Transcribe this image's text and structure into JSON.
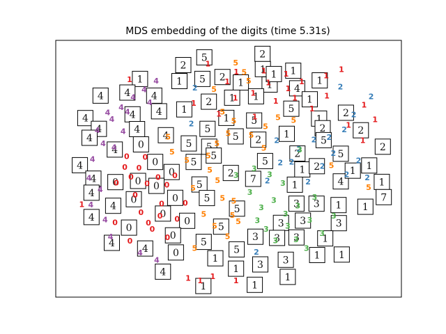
{
  "chart_data": {
    "type": "scatter",
    "title": "MDS embedding of the digits (time 5.31s)",
    "xlabel": "",
    "ylabel": "",
    "xlim": [
      0,
      100
    ],
    "ylim": [
      0,
      100
    ],
    "grid": false,
    "axes_ticks": false,
    "colors": {
      "0": "#e41a1c",
      "1": "#e41a1c",
      "2": "#377eb8",
      "3": "#4daf4a",
      "4": "#984ea3",
      "5": "#ff7f00"
    },
    "points": [
      {
        "label": "1",
        "x": 52.1,
        "y": 80.2
      },
      {
        "label": "1",
        "x": 60.9,
        "y": 91.8
      },
      {
        "label": "1",
        "x": 67.8,
        "y": 90.5
      },
      {
        "label": "1",
        "x": 72.6,
        "y": 87.3
      },
      {
        "label": "1",
        "x": 80.2,
        "y": 89.7
      },
      {
        "label": "1",
        "x": 84.9,
        "y": 92.4
      },
      {
        "label": "1",
        "x": 62.3,
        "y": 86.8
      },
      {
        "label": "1",
        "x": 70.5,
        "y": 80.3
      },
      {
        "label": "1",
        "x": 75.8,
        "y": 75.7
      },
      {
        "label": "1",
        "x": 80.4,
        "y": 81.1
      },
      {
        "label": "1",
        "x": 49.6,
        "y": 87.3
      },
      {
        "label": "1",
        "x": 52.4,
        "y": 91.4
      },
      {
        "label": "1",
        "x": 57.6,
        "y": 82.4
      },
      {
        "label": "1",
        "x": 64.6,
        "y": 78.9
      },
      {
        "label": "1",
        "x": 68.4,
        "y": 84.3
      },
      {
        "label": "1",
        "x": 91.5,
        "y": 62.1
      },
      {
        "label": "1",
        "x": 95.3,
        "y": 71.1
      },
      {
        "label": "1",
        "x": 91.9,
        "y": 77.3
      },
      {
        "label": "1",
        "x": 87.1,
        "y": 68.7
      },
      {
        "label": "1",
        "x": 43.6,
        "y": 94.8
      },
      {
        "label": "1",
        "x": 39.2,
        "y": 78.1
      },
      {
        "label": "1",
        "x": 47.0,
        "y": 73.4
      },
      {
        "label": "1",
        "x": 58.1,
        "y": 72.2
      },
      {
        "label": "1",
        "x": 37.5,
        "y": 3.4
      },
      {
        "label": "1",
        "x": 41.2,
        "y": 2.4
      },
      {
        "label": "1",
        "x": 45.1,
        "y": 4.2
      },
      {
        "label": "1",
        "x": 52.3,
        "y": 2.4
      },
      {
        "label": "1",
        "x": 4.6,
        "y": 34.9
      },
      {
        "label": "1",
        "x": 19.4,
        "y": 88.2
      },
      {
        "label": "0",
        "x": 17.9,
        "y": 50.7
      },
      {
        "label": "0",
        "x": 22.3,
        "y": 50.4
      },
      {
        "label": "0",
        "x": 19.8,
        "y": 46.6
      },
      {
        "label": "0",
        "x": 21.1,
        "y": 38.9
      },
      {
        "label": "0",
        "x": 24.8,
        "y": 43.7
      },
      {
        "label": "0",
        "x": 28.2,
        "y": 46.5
      },
      {
        "label": "0",
        "x": 29.3,
        "y": 35.1
      },
      {
        "label": "0",
        "x": 25.2,
        "y": 27.0
      },
      {
        "label": "0",
        "x": 31.1,
        "y": 20.7
      },
      {
        "label": "0",
        "x": 36.6,
        "y": 35.4
      },
      {
        "label": "0",
        "x": 22.9,
        "y": 31.5
      },
      {
        "label": "0",
        "x": 14.9,
        "y": 27.2
      },
      {
        "label": "0",
        "x": 19.5,
        "y": 19.3
      },
      {
        "label": "0",
        "x": 34.1,
        "y": 28.6
      },
      {
        "label": "0",
        "x": 30.9,
        "y": 43.2
      },
      {
        "label": "0",
        "x": 18.5,
        "y": 55.4
      },
      {
        "label": "0",
        "x": 15.3,
        "y": 44.0
      },
      {
        "label": "0",
        "x": 26.4,
        "y": 24.4
      },
      {
        "label": "0",
        "x": 28.8,
        "y": 29.9
      },
      {
        "label": "0",
        "x": 24.2,
        "y": 55.1
      },
      {
        "label": "0",
        "x": 33.4,
        "y": 47.2
      },
      {
        "label": "2",
        "x": 38.5,
        "y": 69.3
      },
      {
        "label": "2",
        "x": 64.9,
        "y": 62.2
      },
      {
        "label": "2",
        "x": 71.8,
        "y": 58.4
      },
      {
        "label": "2",
        "x": 74.6,
        "y": 44.5
      },
      {
        "label": "2",
        "x": 79.0,
        "y": 51.2
      },
      {
        "label": "2",
        "x": 82.4,
        "y": 56.7
      },
      {
        "label": "2",
        "x": 85.8,
        "y": 66.8
      },
      {
        "label": "2",
        "x": 88.7,
        "y": 73.1
      },
      {
        "label": "2",
        "x": 90.2,
        "y": 53.5
      },
      {
        "label": "2",
        "x": 92.9,
        "y": 46.3
      },
      {
        "label": "2",
        "x": 58.6,
        "y": 14.5
      },
      {
        "label": "2",
        "x": 66.0,
        "y": 52.6
      },
      {
        "label": "2",
        "x": 84.6,
        "y": 85.0
      },
      {
        "label": "2",
        "x": 39.6,
        "y": 84.6
      },
      {
        "label": "2",
        "x": 76.4,
        "y": 62.4
      },
      {
        "label": "2",
        "x": 94.1,
        "y": 80.8
      },
      {
        "label": "2",
        "x": 86.5,
        "y": 47.7
      },
      {
        "label": "2",
        "x": 81.1,
        "y": 63.5
      },
      {
        "label": "2",
        "x": 62.0,
        "y": 44.9
      },
      {
        "label": "2",
        "x": 69.5,
        "y": 53.0
      },
      {
        "label": "3",
        "x": 56.6,
        "y": 40.1
      },
      {
        "label": "3",
        "x": 60.1,
        "y": 33.5
      },
      {
        "label": "3",
        "x": 64.0,
        "y": 36.6
      },
      {
        "label": "3",
        "x": 67.6,
        "y": 30.8
      },
      {
        "label": "3",
        "x": 71.4,
        "y": 34.2
      },
      {
        "label": "3",
        "x": 75.1,
        "y": 28.2
      },
      {
        "label": "3",
        "x": 78.9,
        "y": 22.6
      },
      {
        "label": "3",
        "x": 61.6,
        "y": 24.4
      },
      {
        "label": "3",
        "x": 64.5,
        "y": 19.4
      },
      {
        "label": "3",
        "x": 70.9,
        "y": 19.9
      },
      {
        "label": "3",
        "x": 74.1,
        "y": 16.2
      },
      {
        "label": "3",
        "x": 58.9,
        "y": 28.0
      },
      {
        "label": "3",
        "x": 66.8,
        "y": 43.9
      },
      {
        "label": "3",
        "x": 72.0,
        "y": 58.1
      },
      {
        "label": "3",
        "x": 76.6,
        "y": 38.0
      },
      {
        "label": "3",
        "x": 82.5,
        "y": 29.9
      },
      {
        "label": "3",
        "x": 52.3,
        "y": 47.4
      },
      {
        "label": "3",
        "x": 57.9,
        "y": 50.2
      },
      {
        "label": "3",
        "x": 62.7,
        "y": 47.6
      },
      {
        "label": "3",
        "x": 68.3,
        "y": 25.7
      },
      {
        "label": "4",
        "x": 9.4,
        "y": 66.4
      },
      {
        "label": "4",
        "x": 11.2,
        "y": 60.8
      },
      {
        "label": "4",
        "x": 13.9,
        "y": 71.2
      },
      {
        "label": "4",
        "x": 16.8,
        "y": 76.2
      },
      {
        "label": "4",
        "x": 20.5,
        "y": 80.5
      },
      {
        "label": "4",
        "x": 23.9,
        "y": 83.9
      },
      {
        "label": "4",
        "x": 27.6,
        "y": 87.6
      },
      {
        "label": "4",
        "x": 14.6,
        "y": 59.2
      },
      {
        "label": "4",
        "x": 7.9,
        "y": 54.1
      },
      {
        "label": "4",
        "x": 6.8,
        "y": 46.2
      },
      {
        "label": "4",
        "x": 10.3,
        "y": 41.3
      },
      {
        "label": "4",
        "x": 7.4,
        "y": 34.7
      },
      {
        "label": "4",
        "x": 11.8,
        "y": 28.3
      },
      {
        "label": "4",
        "x": 13.5,
        "y": 21.1
      },
      {
        "label": "4",
        "x": 27.8,
        "y": 11.1
      },
      {
        "label": "4",
        "x": 22.6,
        "y": 14.2
      },
      {
        "label": "4",
        "x": 18.7,
        "y": 74.3
      },
      {
        "label": "4",
        "x": 12.6,
        "y": 74.1
      },
      {
        "label": "4",
        "x": 25.6,
        "y": 78.4
      },
      {
        "label": "4",
        "x": 17.4,
        "y": 66.0
      },
      {
        "label": "5",
        "x": 52.2,
        "y": 95.2
      },
      {
        "label": "5",
        "x": 54.8,
        "y": 91.3
      },
      {
        "label": "5",
        "x": 56.2,
        "y": 87.5
      },
      {
        "label": "5",
        "x": 45.5,
        "y": 84.0
      },
      {
        "label": "5",
        "x": 48.1,
        "y": 74.4
      },
      {
        "label": "5",
        "x": 51.6,
        "y": 70.5
      },
      {
        "label": "5",
        "x": 49.9,
        "y": 65.1
      },
      {
        "label": "5",
        "x": 46.4,
        "y": 60.9
      },
      {
        "label": "5",
        "x": 43.7,
        "y": 55.6
      },
      {
        "label": "5",
        "x": 44.2,
        "y": 49.5
      },
      {
        "label": "5",
        "x": 46.6,
        "y": 45.1
      },
      {
        "label": "5",
        "x": 48.1,
        "y": 37.6
      },
      {
        "label": "5",
        "x": 51.2,
        "y": 30.3
      },
      {
        "label": "5",
        "x": 53.0,
        "y": 27.6
      },
      {
        "label": "5",
        "x": 49.7,
        "y": 21.2
      },
      {
        "label": "5",
        "x": 45.7,
        "y": 25.6
      },
      {
        "label": "5",
        "x": 42.3,
        "y": 30.7
      },
      {
        "label": "5",
        "x": 39.0,
        "y": 41.9
      },
      {
        "label": "5",
        "x": 37.1,
        "y": 53.7
      },
      {
        "label": "5",
        "x": 32.5,
        "y": 57.2
      },
      {
        "label": "5",
        "x": 31.3,
        "y": 63.7
      },
      {
        "label": "5",
        "x": 60.9,
        "y": 58.9
      },
      {
        "label": "5",
        "x": 61.4,
        "y": 68.1
      },
      {
        "label": "5",
        "x": 65.3,
        "y": 72.0
      },
      {
        "label": "5",
        "x": 70.1,
        "y": 70.7
      },
      {
        "label": "5",
        "x": 81.8,
        "y": 51.5
      },
      {
        "label": "5",
        "x": 93.3,
        "y": 42.2
      },
      {
        "label": "5",
        "x": 39.5,
        "y": 16.1
      },
      {
        "label": "5",
        "x": 51.6,
        "y": 36.3
      },
      {
        "label": "5",
        "x": 57.0,
        "y": 64.4
      }
    ],
    "thumbnails": [
      {
        "digit": "2",
        "x": 60.5,
        "y": 99.0
      },
      {
        "digit": "5",
        "x": 42.5,
        "y": 97.5
      },
      {
        "digit": "2",
        "x": 36.0,
        "y": 94.2
      },
      {
        "digit": "1",
        "x": 60.6,
        "y": 92.5
      },
      {
        "digit": "1",
        "x": 70.0,
        "y": 91.8
      },
      {
        "digit": "1",
        "x": 78.2,
        "y": 87.7
      },
      {
        "digit": "1",
        "x": 22.6,
        "y": 88.3
      },
      {
        "digit": "1",
        "x": 34.8,
        "y": 87.4
      },
      {
        "digit": "5",
        "x": 41.9,
        "y": 88.3
      },
      {
        "digit": "2",
        "x": 48.1,
        "y": 89.1
      },
      {
        "digit": "1",
        "x": 53.8,
        "y": 86.8
      },
      {
        "digit": "1",
        "x": 62.7,
        "y": 85.9
      },
      {
        "digit": "4",
        "x": 71.2,
        "y": 84.3
      },
      {
        "digit": "4",
        "x": 10.4,
        "y": 81.2
      },
      {
        "digit": "4",
        "x": 18.7,
        "y": 82.5
      },
      {
        "digit": "4",
        "x": 27.0,
        "y": 81.2
      },
      {
        "digit": "2",
        "x": 43.9,
        "y": 78.6
      },
      {
        "digit": "1",
        "x": 51.1,
        "y": 80.3
      },
      {
        "digit": "1",
        "x": 58.5,
        "y": 80.9
      },
      {
        "digit": "1",
        "x": 75.1,
        "y": 79.6
      },
      {
        "digit": "1",
        "x": 36.3,
        "y": 75.3
      },
      {
        "digit": "4",
        "x": 28.5,
        "y": 74.5
      },
      {
        "digit": "4",
        "x": 20.3,
        "y": 73.2
      },
      {
        "digit": "5",
        "x": 69.4,
        "y": 75.6
      },
      {
        "digit": "1",
        "x": 78.0,
        "y": 71.4
      },
      {
        "digit": "2",
        "x": 86.3,
        "y": 73.9
      },
      {
        "digit": "4",
        "x": 5.7,
        "y": 71.6
      },
      {
        "digit": "4",
        "x": 9.9,
        "y": 67.0
      },
      {
        "digit": "4",
        "x": 21.7,
        "y": 66.9
      },
      {
        "digit": "1",
        "x": 49.3,
        "y": 71.7
      },
      {
        "digit": "5",
        "x": 57.9,
        "y": 70.6
      },
      {
        "digit": "2",
        "x": 79.1,
        "y": 67.3
      },
      {
        "digit": "2",
        "x": 90.9,
        "y": 66.4
      },
      {
        "digit": "4",
        "x": 30.6,
        "y": 64.3
      },
      {
        "digit": "5",
        "x": 43.5,
        "y": 67.0
      },
      {
        "digit": "5",
        "x": 52.2,
        "y": 63.8
      },
      {
        "digit": "2",
        "x": 59.2,
        "y": 62.4
      },
      {
        "digit": "1",
        "x": 68.0,
        "y": 64.9
      },
      {
        "digit": "5",
        "x": 79.4,
        "y": 62.2
      },
      {
        "digit": "2",
        "x": 97.7,
        "y": 59.4
      },
      {
        "digit": "4",
        "x": 7.0,
        "y": 63.2
      },
      {
        "digit": "0",
        "x": 22.9,
        "y": 60.4
      },
      {
        "digit": "5",
        "x": 37.7,
        "y": 60.8
      },
      {
        "digit": "5",
        "x": 44.0,
        "y": 59.4
      },
      {
        "digit": "5",
        "x": 45.4,
        "y": 55.6
      },
      {
        "digit": "4",
        "x": 14.8,
        "y": 58.2
      },
      {
        "digit": "0",
        "x": 27.3,
        "y": 52.9
      },
      {
        "digit": "5",
        "x": 39.2,
        "y": 52.9
      },
      {
        "digit": "2",
        "x": 71.3,
        "y": 56.5
      },
      {
        "digit": "5",
        "x": 84.7,
        "y": 56.4
      },
      {
        "digit": "1",
        "x": 93.5,
        "y": 51.4
      },
      {
        "digit": "4",
        "x": 4.0,
        "y": 51.5
      },
      {
        "digit": "0",
        "x": 32.4,
        "y": 48.6
      },
      {
        "digit": "2",
        "x": 50.7,
        "y": 48.2
      },
      {
        "digit": "5",
        "x": 61.3,
        "y": 53.3
      },
      {
        "digit": "1",
        "x": 72.8,
        "y": 49.7
      },
      {
        "digit": "4",
        "x": 84.7,
        "y": 44.6
      },
      {
        "digit": "1",
        "x": 88.4,
        "y": 49.2
      },
      {
        "digit": "2",
        "x": 77.3,
        "y": 51.1
      },
      {
        "digit": "1",
        "x": 97.4,
        "y": 44.4
      },
      {
        "digit": "4",
        "x": 8.2,
        "y": 45.8
      },
      {
        "digit": "0",
        "x": 15.0,
        "y": 44.3
      },
      {
        "digit": "0",
        "x": 22.0,
        "y": 44.8
      },
      {
        "digit": "0",
        "x": 27.7,
        "y": 42.7
      },
      {
        "digit": "5",
        "x": 41.0,
        "y": 43.3
      },
      {
        "digit": "7",
        "x": 57.6,
        "y": 45.7
      },
      {
        "digit": "1",
        "x": 70.5,
        "y": 43.2
      },
      {
        "digit": "4",
        "x": 7.6,
        "y": 39.8
      },
      {
        "digit": "0",
        "x": 20.7,
        "y": 37.0
      },
      {
        "digit": "0",
        "x": 33.5,
        "y": 37.6
      },
      {
        "digit": "5",
        "x": 43.3,
        "y": 37.5
      },
      {
        "digit": "3",
        "x": 71.0,
        "y": 35.1
      },
      {
        "digit": "3",
        "x": 77.2,
        "y": 35.1
      },
      {
        "digit": "1",
        "x": 84.0,
        "y": 34.5
      },
      {
        "digit": "7",
        "x": 98.0,
        "y": 37.9
      },
      {
        "digit": "4",
        "x": 14.3,
        "y": 34.2
      },
      {
        "digit": "0",
        "x": 29.7,
        "y": 30.9
      },
      {
        "digit": "5",
        "x": 52.6,
        "y": 33.0
      },
      {
        "digit": "1",
        "x": 92.3,
        "y": 33.8
      },
      {
        "digit": "4",
        "x": 7.6,
        "y": 29.4
      },
      {
        "digit": "0",
        "x": 37.2,
        "y": 27.8
      },
      {
        "digit": "3",
        "x": 66.2,
        "y": 26.9
      },
      {
        "digit": "3",
        "x": 73.0,
        "y": 27.9
      },
      {
        "digit": "3",
        "x": 84.1,
        "y": 26.8
      },
      {
        "digit": "0",
        "x": 19.2,
        "y": 24.9
      },
      {
        "digit": "5",
        "x": 47.7,
        "y": 25.3
      },
      {
        "digit": "0",
        "x": 32.8,
        "y": 21.6
      },
      {
        "digit": "3",
        "x": 58.3,
        "y": 21.0
      },
      {
        "digit": "3",
        "x": 65.0,
        "y": 20.5
      },
      {
        "digit": "3",
        "x": 71.0,
        "y": 20.7
      },
      {
        "digit": "1",
        "x": 79.9,
        "y": 20.3
      },
      {
        "digit": "5",
        "x": 42.3,
        "y": 18.8
      },
      {
        "digit": "4",
        "x": 13.9,
        "y": 18.4
      },
      {
        "digit": "4",
        "x": 24.2,
        "y": 16.0
      },
      {
        "digit": "0",
        "x": 33.7,
        "y": 14.3
      },
      {
        "digit": "5",
        "x": 52.5,
        "y": 15.6
      },
      {
        "digit": "1",
        "x": 45.9,
        "y": 11.8
      },
      {
        "digit": "1",
        "x": 77.4,
        "y": 13.2
      },
      {
        "digit": "1",
        "x": 85.0,
        "y": 13.4
      },
      {
        "digit": "3",
        "x": 59.8,
        "y": 9.2
      },
      {
        "digit": "3",
        "x": 67.7,
        "y": 11.2
      },
      {
        "digit": "1",
        "x": 52.3,
        "y": 7.4
      },
      {
        "digit": "4",
        "x": 29.7,
        "y": 6.1
      },
      {
        "digit": "1",
        "x": 68.3,
        "y": 3.9
      },
      {
        "digit": "1",
        "x": 42.2,
        "y": 0.0
      },
      {
        "digit": "1",
        "x": 58.1,
        "y": 0.5
      },
      {
        "digit": "1",
        "x": 64.0,
        "y": 90.4
      }
    ]
  }
}
